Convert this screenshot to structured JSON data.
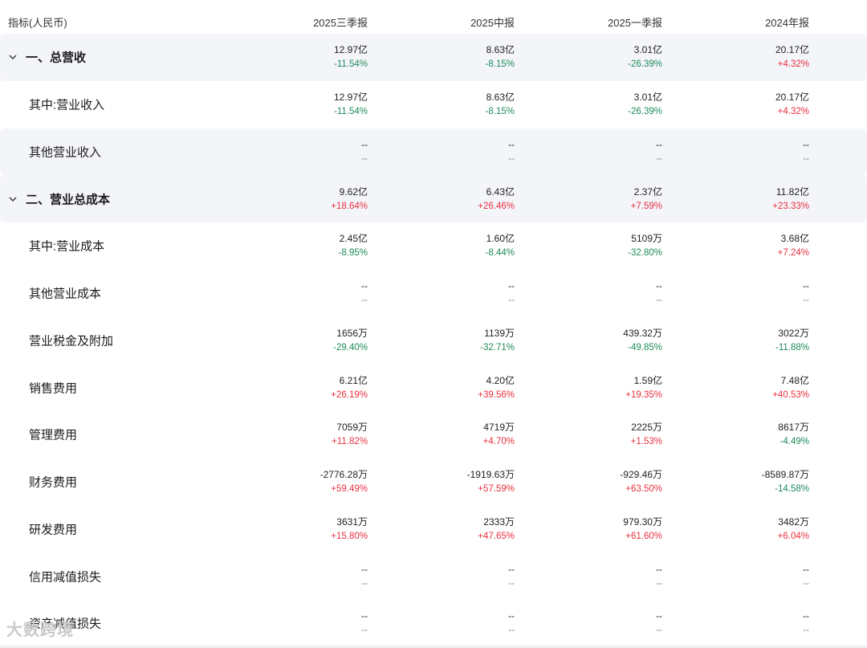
{
  "header": {
    "label": "指标(人民币)",
    "periods": [
      "2025三季报",
      "2025中报",
      "2025一季报",
      "2024年报"
    ]
  },
  "rows": [
    {
      "label": "一、总营收",
      "values": [
        {
          "v": "12.97亿",
          "c": "-11.54%",
          "dir": "down"
        },
        {
          "v": "8.63亿",
          "c": "-8.15%",
          "dir": "down"
        },
        {
          "v": "3.01亿",
          "c": "-26.39%",
          "dir": "down"
        },
        {
          "v": "20.17亿",
          "c": "+4.32%",
          "dir": "up"
        }
      ]
    },
    {
      "label": "其中:营业收入",
      "values": [
        {
          "v": "12.97亿",
          "c": "-11.54%",
          "dir": "down"
        },
        {
          "v": "8.63亿",
          "c": "-8.15%",
          "dir": "down"
        },
        {
          "v": "3.01亿",
          "c": "-26.39%",
          "dir": "down"
        },
        {
          "v": "20.17亿",
          "c": "+4.32%",
          "dir": "up"
        }
      ]
    },
    {
      "label": "其他营业收入",
      "values": [
        {
          "v": "--",
          "c": "--",
          "dir": "none"
        },
        {
          "v": "--",
          "c": "--",
          "dir": "none"
        },
        {
          "v": "--",
          "c": "--",
          "dir": "none"
        },
        {
          "v": "--",
          "c": "--",
          "dir": "none"
        }
      ]
    },
    {
      "label": "二、营业总成本",
      "values": [
        {
          "v": "9.62亿",
          "c": "+18.64%",
          "dir": "up"
        },
        {
          "v": "6.43亿",
          "c": "+26.46%",
          "dir": "up"
        },
        {
          "v": "2.37亿",
          "c": "+7.59%",
          "dir": "up"
        },
        {
          "v": "11.82亿",
          "c": "+23.33%",
          "dir": "up"
        }
      ]
    },
    {
      "label": "其中:营业成本",
      "values": [
        {
          "v": "2.45亿",
          "c": "-8.95%",
          "dir": "down"
        },
        {
          "v": "1.60亿",
          "c": "-8.44%",
          "dir": "down"
        },
        {
          "v": "5109万",
          "c": "-32.80%",
          "dir": "down"
        },
        {
          "v": "3.68亿",
          "c": "+7.24%",
          "dir": "up"
        }
      ]
    },
    {
      "label": "其他营业成本",
      "values": [
        {
          "v": "--",
          "c": "--",
          "dir": "none"
        },
        {
          "v": "--",
          "c": "--",
          "dir": "none"
        },
        {
          "v": "--",
          "c": "--",
          "dir": "none"
        },
        {
          "v": "--",
          "c": "--",
          "dir": "none"
        }
      ]
    },
    {
      "label": "营业税金及附加",
      "values": [
        {
          "v": "1656万",
          "c": "-29.40%",
          "dir": "down"
        },
        {
          "v": "1139万",
          "c": "-32.71%",
          "dir": "down"
        },
        {
          "v": "439.32万",
          "c": "-49.85%",
          "dir": "down"
        },
        {
          "v": "3022万",
          "c": "-11.88%",
          "dir": "down"
        }
      ]
    },
    {
      "label": "销售费用",
      "values": [
        {
          "v": "6.21亿",
          "c": "+26.19%",
          "dir": "up"
        },
        {
          "v": "4.20亿",
          "c": "+39.56%",
          "dir": "up"
        },
        {
          "v": "1.59亿",
          "c": "+19.35%",
          "dir": "up"
        },
        {
          "v": "7.48亿",
          "c": "+40.53%",
          "dir": "up"
        }
      ]
    },
    {
      "label": "管理费用",
      "values": [
        {
          "v": "7059万",
          "c": "+11.82%",
          "dir": "up"
        },
        {
          "v": "4719万",
          "c": "+4.70%",
          "dir": "up"
        },
        {
          "v": "2225万",
          "c": "+1.53%",
          "dir": "up"
        },
        {
          "v": "8617万",
          "c": "-4.49%",
          "dir": "down"
        }
      ]
    },
    {
      "label": "财务费用",
      "values": [
        {
          "v": "-2776.28万",
          "c": "+59.49%",
          "dir": "up"
        },
        {
          "v": "-1919.63万",
          "c": "+57.59%",
          "dir": "up"
        },
        {
          "v": "-929.46万",
          "c": "+63.50%",
          "dir": "up"
        },
        {
          "v": "-8589.87万",
          "c": "-14.58%",
          "dir": "down"
        }
      ]
    },
    {
      "label": "研发费用",
      "values": [
        {
          "v": "3631万",
          "c": "+15.80%",
          "dir": "up"
        },
        {
          "v": "2333万",
          "c": "+47.65%",
          "dir": "up"
        },
        {
          "v": "979.30万",
          "c": "+61.60%",
          "dir": "up"
        },
        {
          "v": "3482万",
          "c": "+6.04%",
          "dir": "up"
        }
      ]
    },
    {
      "label": "信用减值损失",
      "values": [
        {
          "v": "--",
          "c": "--",
          "dir": "none"
        },
        {
          "v": "--",
          "c": "--",
          "dir": "none"
        },
        {
          "v": "--",
          "c": "--",
          "dir": "none"
        },
        {
          "v": "--",
          "c": "--",
          "dir": "none"
        }
      ]
    },
    {
      "label": "资产减值损失",
      "values": [
        {
          "v": "--",
          "c": "--",
          "dir": "none"
        },
        {
          "v": "--",
          "c": "--",
          "dir": "none"
        },
        {
          "v": "--",
          "c": "--",
          "dir": "none"
        },
        {
          "v": "--",
          "c": "--",
          "dir": "none"
        }
      ]
    }
  ],
  "watermark": "大数跨境",
  "colors": {
    "up": "#e8303f",
    "down": "#1f8a5a",
    "row_shade": "#f3f5f9"
  }
}
